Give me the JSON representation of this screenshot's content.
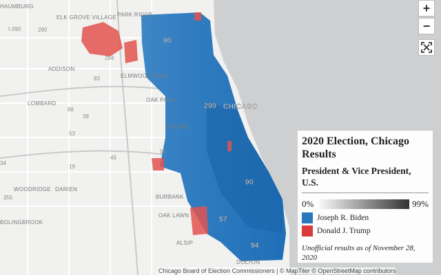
{
  "map": {
    "labels": [
      "HAUMBURG",
      "ELK GROVE VILLAGE",
      "PARK RIDGE",
      "I-390",
      "290",
      "294",
      "ADDISON",
      "ELMWOOD PARK",
      "LOMBARD",
      "OAK PARK",
      "290",
      "CHICAGO",
      "CICERO",
      "55",
      "WOODRIDGE",
      "DARIEN",
      "BURBANK",
      "OAK LAWN",
      "BOLINGBROOK",
      "ALSIP",
      "DOLTON",
      "90",
      "94",
      "57",
      "88",
      "38",
      "83",
      "355",
      "53",
      "45",
      "19",
      "34",
      "90"
    ]
  },
  "legend": {
    "title": "2020 Election, Chicago Results",
    "subtitle": "President & Vice President, U.S.",
    "scale": {
      "min": "0%",
      "max": "99%"
    },
    "entries": [
      {
        "label": "Joseph R. Biden",
        "color": "#2a78bd"
      },
      {
        "label": "Donald J. Trump",
        "color": "#d93a3a"
      }
    ],
    "note": "Unofficial results as of November 28, 2020"
  },
  "controls": {
    "zoom_in": "+",
    "zoom_out": "−"
  },
  "attribution": "Chicago Board of Election Commissioners | © MapTiler © OpenStreetMap contributors"
}
